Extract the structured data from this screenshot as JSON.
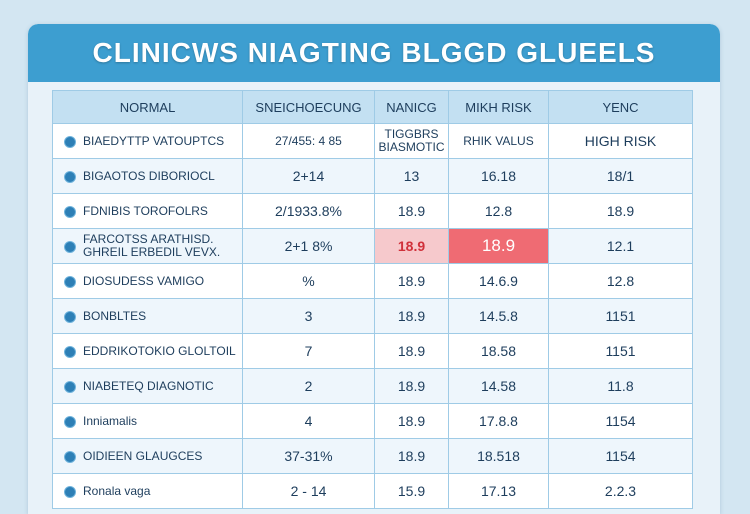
{
  "title": "CLINICWS NIAGTING BLGGD GLUEELS",
  "colors": {
    "header": "#3d9ed0",
    "highlight_soft": "#f6c9cc",
    "highlight_strong": "#ef6b73"
  },
  "table": {
    "headers": [
      "NORMAL",
      "SNEICHOECUNG",
      "NANICG",
      "MIKH RISK",
      "YENC"
    ],
    "rows": [
      {
        "label": "BIAEDYTTP VATOUPTCS",
        "cells": [
          "27/455: 4 85",
          "TIGGBRS BIASMOTIC",
          "RHIK VALUS",
          "HIGH RISK"
        ]
      },
      {
        "label": "BIGAOTOS DIBORIOCL",
        "cells": [
          "2+14",
          "13",
          "16.18",
          "18/1"
        ]
      },
      {
        "label": "FDNIBIS TOROFOLRS",
        "cells": [
          "2/1933.8%",
          "18.9",
          "12.8",
          "18.9"
        ]
      },
      {
        "label": "FARCOTSS ARATHISD. GHREIL ERBEDIL VEVX.",
        "cells": [
          "2+1 8%",
          "18.9",
          "18.9",
          "12.1"
        ]
      },
      {
        "label": "DIOSUDESS VAMIGO",
        "cells": [
          "%",
          "18.9",
          "14.6.9",
          "12.8"
        ]
      },
      {
        "label": "BONBLTES",
        "cells": [
          "3",
          "18.9",
          "14.5.8",
          "1151"
        ]
      },
      {
        "label": "EDDRIKOTOKIO GLOLTOIL",
        "cells": [
          "7",
          "18.9",
          "18.58",
          "1151"
        ]
      },
      {
        "label": "NIABETEQ DIAGNOTIC",
        "cells": [
          "2",
          "18.9",
          "14.58",
          "11.8"
        ]
      },
      {
        "label": "Inniamalis",
        "cells": [
          "4",
          "18.9",
          "17.8.8",
          "1154"
        ]
      },
      {
        "label": "OIDIEEN GLAUGCES",
        "cells": [
          "37-31%",
          "18.9",
          "18.518",
          "1154"
        ]
      },
      {
        "label": "Ronala vaga",
        "cells": [
          "2 - 14",
          "15.9",
          "17.13",
          "2.2.3"
        ]
      }
    ]
  }
}
